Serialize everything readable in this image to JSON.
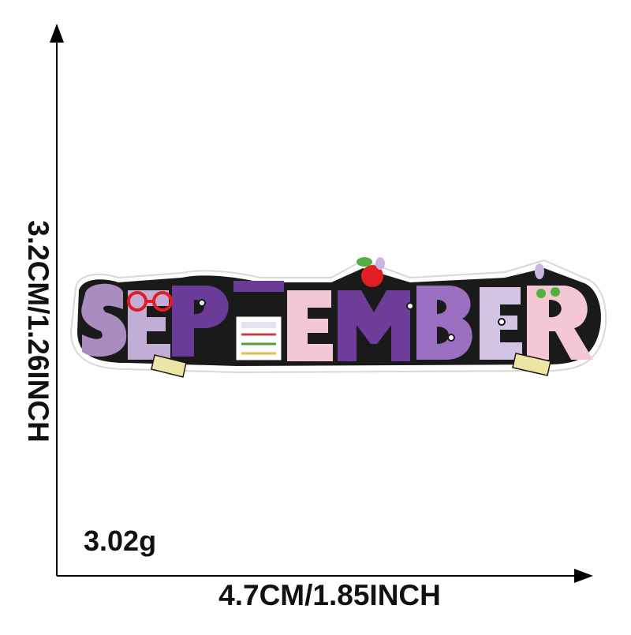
{
  "dimensions": {
    "height_label": "3.2CM/1.26INCH",
    "width_label": "4.7CM/1.85INCH"
  },
  "weight_label": "3.02g",
  "patch": {
    "text": "SEPTEMBER",
    "letter_colors": [
      "#a98cc0",
      "#c3afd6",
      "#6a3c97",
      "#ffffff",
      "#f2c8d6",
      "#6e3d9a",
      "#9a6fc1",
      "#d2c4e2",
      "#f3c7d3"
    ],
    "outline_color": "#1a1a1a",
    "border_color": "#ffffff",
    "accent_colors": {
      "glasses": "#e31b23",
      "apple": "#e01e26",
      "leaf": "#52b043",
      "pencil": "#ece5a6"
    }
  }
}
